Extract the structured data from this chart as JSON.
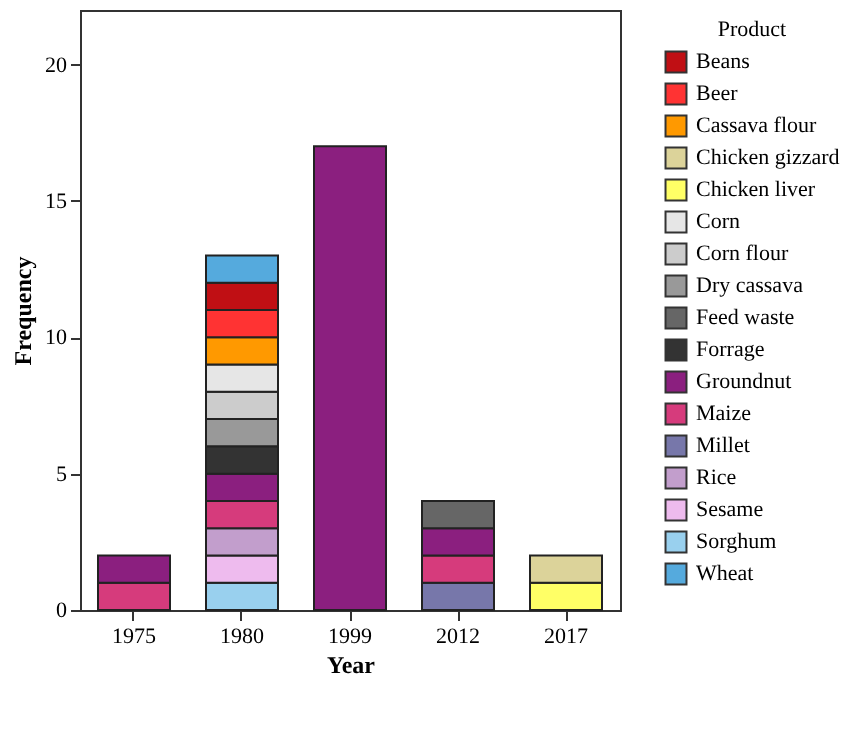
{
  "chart_data": {
    "type": "bar",
    "stacked": true,
    "xlabel": "Year",
    "ylabel": "Frequency",
    "legend_title": "Product",
    "legend": "right",
    "grid": false,
    "categories": [
      "1975",
      "1980",
      "1999",
      "2012",
      "2017"
    ],
    "ylim": [
      0,
      22
    ],
    "yticks": [
      0,
      5,
      10,
      15,
      20
    ],
    "series": [
      {
        "name": "Sorghum",
        "color": "#99d0ee",
        "values": [
          null,
          1,
          null,
          null,
          null
        ]
      },
      {
        "name": "Sesame",
        "color": "#eebbee",
        "values": [
          null,
          1,
          null,
          null,
          null
        ]
      },
      {
        "name": "Rice",
        "color": "#c29ecc",
        "values": [
          null,
          1,
          null,
          null,
          null
        ]
      },
      {
        "name": "Millet",
        "color": "#7777aa",
        "values": [
          null,
          null,
          null,
          1,
          null
        ]
      },
      {
        "name": "Maize",
        "color": "#d63b7c",
        "values": [
          1,
          1,
          null,
          1,
          null
        ]
      },
      {
        "name": "Groundnut",
        "color": "#8b1f7f",
        "values": [
          1,
          1,
          17,
          1,
          null
        ]
      },
      {
        "name": "Forrage",
        "color": "#333333",
        "values": [
          null,
          1,
          null,
          null,
          null
        ]
      },
      {
        "name": "Feed waste",
        "color": "#666666",
        "values": [
          null,
          null,
          null,
          1,
          null
        ]
      },
      {
        "name": "Dry cassava",
        "color": "#999999",
        "values": [
          null,
          1,
          null,
          null,
          null
        ]
      },
      {
        "name": "Corn flour",
        "color": "#cccccc",
        "values": [
          null,
          1,
          null,
          null,
          null
        ]
      },
      {
        "name": "Corn",
        "color": "#e6e6e6",
        "values": [
          null,
          1,
          null,
          null,
          null
        ]
      },
      {
        "name": "Chicken liver",
        "color": "#ffff66",
        "values": [
          null,
          null,
          null,
          null,
          1
        ]
      },
      {
        "name": "Chicken gizzard",
        "color": "#dcd39a",
        "values": [
          null,
          null,
          null,
          null,
          1
        ]
      },
      {
        "name": "Cassava flour",
        "color": "#ff9900",
        "values": [
          null,
          1,
          null,
          null,
          null
        ]
      },
      {
        "name": "Beer",
        "color": "#ff3333",
        "values": [
          null,
          1,
          null,
          null,
          null
        ]
      },
      {
        "name": "Beans",
        "color": "#c00f14",
        "values": [
          null,
          1,
          null,
          null,
          null
        ]
      },
      {
        "name": "Wheat",
        "color": "#55aadd",
        "values": [
          null,
          1,
          null,
          null,
          null
        ]
      }
    ]
  }
}
